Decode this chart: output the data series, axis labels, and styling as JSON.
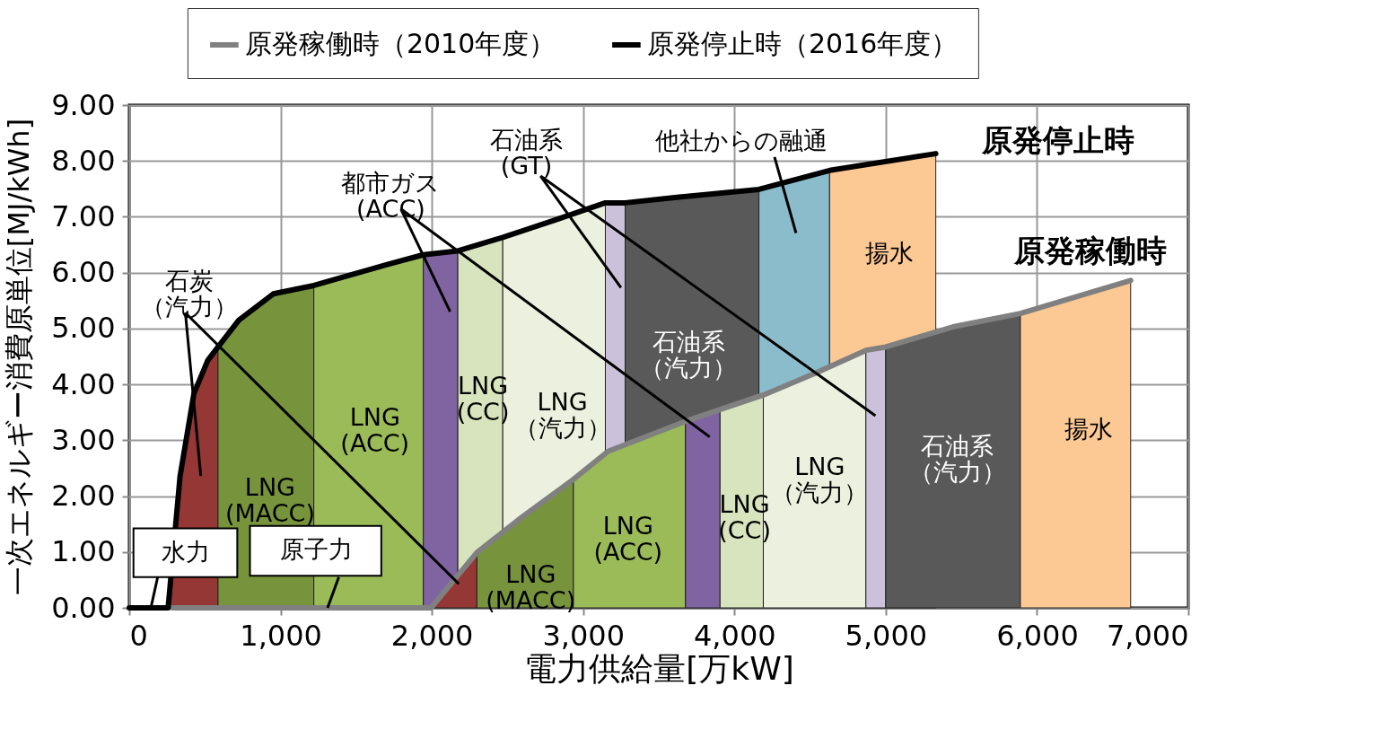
{
  "chart_data": {
    "type": "area",
    "xlabel": "電力供給量[万kW]",
    "ylabel": "一次エネルギー消費原単位[MJ/kWh]",
    "xlim": [
      0,
      7000
    ],
    "xticks": [
      0,
      {
        "value": 1000,
        "label": "1,000"
      },
      {
        "value": 2000,
        "label": "2,000"
      },
      {
        "value": 3000,
        "label": "3,000"
      },
      {
        "value": 4000,
        "label": "4,000"
      },
      {
        "value": 5000,
        "label": "5,000"
      },
      {
        "value": 6000,
        "label": "6,000"
      },
      {
        "value": 7000,
        "label": "7,000"
      }
    ],
    "ylim": [
      0,
      9
    ],
    "yticks": [
      {
        "value": 0,
        "label": "0.00"
      },
      {
        "value": 1,
        "label": "1.00"
      },
      {
        "value": 2,
        "label": "2.00"
      },
      {
        "value": 3,
        "label": "3.00"
      },
      {
        "value": 4,
        "label": "4.00"
      },
      {
        "value": 5,
        "label": "5.00"
      },
      {
        "value": 6,
        "label": "6.00"
      },
      {
        "value": 7,
        "label": "7.00"
      },
      {
        "value": 8,
        "label": "8.00"
      },
      {
        "value": 9,
        "label": "9.00"
      }
    ],
    "grid": true,
    "legend": "top",
    "series": [
      {
        "color": "#953735",
        "x": [
          257,
          336,
          428,
          519,
          587
        ],
        "values": [
          0,
          2.36,
          3.84,
          4.43,
          4.67
        ]
      },
      {
        "type": "area",
        "color": "#77933c",
        "x": [
          587,
          724,
          952,
          1220
        ],
        "values": [
          4.67,
          5.15,
          5.62,
          5.77
        ]
      },
      {
        "type": "area",
        "color": "#9bbb59",
        "x": [
          1220,
          1710,
          1944
        ],
        "values": [
          5.77,
          6.15,
          6.32
        ]
      },
      {
        "type": "area",
        "color": "#8064a2",
        "x": [
          1944,
          2172
        ],
        "values": [
          6.32,
          6.39
        ]
      },
      {
        "type": "area",
        "color": "#d7e4bd",
        "x": [
          2172,
          2469
        ],
        "values": [
          6.39,
          6.63
        ]
      },
      {
        "type": "area",
        "color": "#ebf1de",
        "x": [
          2469,
          2822,
          3147
        ],
        "values": [
          6.63,
          6.95,
          7.25
        ]
      },
      {
        "type": "area",
        "color": "#ccc1da",
        "x": [
          3147,
          3278
        ],
        "values": [
          7.25,
          7.25
        ]
      },
      {
        "type": "area",
        "color": "#595959",
        "x": [
          3278,
          3620,
          4162
        ],
        "values": [
          7.25,
          7.35,
          7.49
        ]
      },
      {
        "type": "area",
        "color": "#8bbccb",
        "x": [
          4162,
          4629
        ],
        "values": [
          7.49,
          7.83
        ]
      },
      {
        "type": "area",
        "color": "#fcc994",
        "x": [
          4629,
          5331
        ],
        "values": [
          7.83,
          8.13
        ]
      },
      {
        "type": "area",
        "color": "#953735",
        "x": [
          1995,
          2178,
          2298
        ],
        "values": [
          0,
          0.6,
          0.99
        ]
      },
      {
        "type": "area",
        "color": "#77933c",
        "x": [
          2298,
          2594,
          2936
        ],
        "values": [
          0.99,
          1.62,
          2.3
        ]
      },
      {
        "type": "area",
        "color": "#9bbb59",
        "x": [
          2936,
          3164,
          3677
        ],
        "values": [
          2.3,
          2.8,
          3.34
        ]
      },
      {
        "type": "area",
        "color": "#8064a2",
        "x": [
          3677,
          3905
        ],
        "values": [
          3.34,
          3.55
        ]
      },
      {
        "type": "area",
        "color": "#d7e4bd",
        "x": [
          3905,
          4191
        ],
        "values": [
          3.55,
          3.81
        ]
      },
      {
        "type": "area",
        "color": "#ebf1de",
        "x": [
          4191,
          4533,
          4869
        ],
        "values": [
          3.81,
          4.2,
          4.61
        ]
      },
      {
        "type": "area",
        "color": "#ccc1da",
        "x": [
          4869,
          5000
        ],
        "values": [
          4.61,
          4.67
        ]
      },
      {
        "type": "area",
        "color": "#595959",
        "x": [
          5000,
          5445,
          5890
        ],
        "values": [
          4.67,
          5.03,
          5.27
        ]
      },
      {
        "type": "area",
        "color": "#fcc994",
        "x": [
          5890,
          6619
        ],
        "values": [
          5.27,
          5.86
        ]
      },
      {
        "type": "line",
        "name": "原発稼働時（2010年度）",
        "color": "#808080",
        "x": [
          285,
          1995,
          2178,
          2298,
          2594,
          2936,
          3164,
          3677,
          3905,
          4191,
          4533,
          4869,
          5000,
          5445,
          5890,
          6619
        ],
        "values": [
          0,
          0,
          0.6,
          0.99,
          1.62,
          2.3,
          2.8,
          3.34,
          3.55,
          3.81,
          4.2,
          4.61,
          4.67,
          5.03,
          5.27,
          5.86
        ]
      },
      {
        "type": "line",
        "name": "原発停止時（2016年度）",
        "color": "#000000",
        "x": [
          0,
          257,
          336,
          428,
          519,
          587,
          724,
          952,
          1220,
          1710,
          1944,
          2172,
          2469,
          2822,
          3147,
          3278,
          3620,
          4162,
          4629,
          5331
        ],
        "values": [
          0,
          0,
          2.36,
          3.84,
          4.43,
          4.67,
          5.15,
          5.62,
          5.77,
          6.15,
          6.32,
          6.39,
          6.63,
          6.95,
          7.25,
          7.25,
          7.35,
          7.49,
          7.83,
          8.13
        ]
      },
      {
        "type": "line",
        "color": "#000000",
        "x": [
          371,
          473
        ],
        "values": [
          5.28,
          2.36
        ]
      },
      {
        "type": "line",
        "color": "#000000",
        "x": [
          371,
          2178
        ],
        "values": [
          5.28,
          0.43
        ]
      },
      {
        "type": "line",
        "color": "#000000",
        "x": [
          1796,
          2121
        ],
        "values": [
          7.14,
          5.3
        ]
      },
      {
        "type": "line",
        "color": "#000000",
        "x": [
          1796,
          3837
        ],
        "values": [
          7.14,
          3.06
        ]
      },
      {
        "type": "line",
        "color": "#000000",
        "x": [
          2719,
          3250
        ],
        "values": [
          7.73,
          5.73
        ]
      },
      {
        "type": "line",
        "color": "#000000",
        "x": [
          2719,
          4932
        ],
        "values": [
          7.73,
          3.44
        ]
      },
      {
        "type": "line",
        "color": "#000000",
        "x": [
          4265,
          4407
        ],
        "values": [
          8.07,
          6.71
        ]
      },
      {
        "type": "line",
        "color": "#000000",
        "x": [
          188,
          143
        ],
        "values": [
          0.55,
          0
        ]
      },
      {
        "type": "line",
        "color": "#000000",
        "x": [
          1385,
          1311
        ],
        "values": [
          0.55,
          0
        ]
      }
    ],
    "annotations": [
      "石炭（汽力）",
      "都市ガス(ACC)",
      "石油系(GT)",
      "他社からの融通",
      "LNG(MACC)",
      "LNG(ACC)",
      "LNG(CC)",
      "LNG（汽力）",
      "石油系（汽力）",
      "揚水",
      "LNG(MACC)",
      "LNG(ACC)",
      "LNG(CC)",
      "LNG（汽力）",
      "石油系（汽力）",
      "揚水",
      "水力",
      "原子力",
      "原発停止時",
      "原発稼働時"
    ]
  }
}
